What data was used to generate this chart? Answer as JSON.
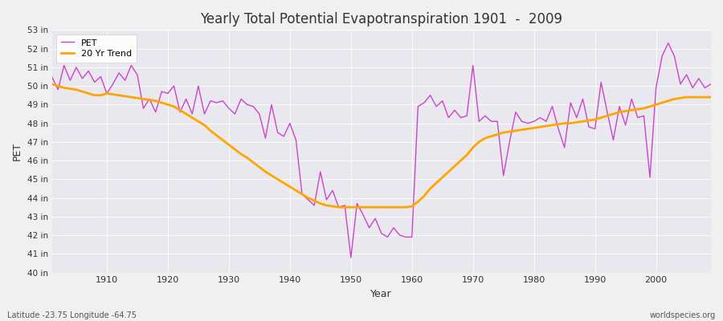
{
  "title": "Yearly Total Potential Evapotranspiration 1901  -  2009",
  "xlabel": "Year",
  "ylabel": "PET",
  "footer_left": "Latitude -23.75 Longitude -64.75",
  "footer_right": "worldspecies.org",
  "pet_color": "#cc44cc",
  "trend_color": "#ffa500",
  "bg_color": "#f0f0f0",
  "plot_bg_color": "#e8e8ee",
  "ylim_min": 40,
  "ylim_max": 53,
  "years": [
    1901,
    1902,
    1903,
    1904,
    1905,
    1906,
    1907,
    1908,
    1909,
    1910,
    1911,
    1912,
    1913,
    1914,
    1915,
    1916,
    1917,
    1918,
    1919,
    1920,
    1921,
    1922,
    1923,
    1924,
    1925,
    1926,
    1927,
    1928,
    1929,
    1930,
    1931,
    1932,
    1933,
    1934,
    1935,
    1936,
    1937,
    1938,
    1939,
    1940,
    1941,
    1942,
    1943,
    1944,
    1945,
    1946,
    1947,
    1948,
    1949,
    1950,
    1951,
    1952,
    1953,
    1954,
    1955,
    1956,
    1957,
    1958,
    1959,
    1960,
    1961,
    1962,
    1963,
    1964,
    1965,
    1966,
    1967,
    1968,
    1969,
    1970,
    1971,
    1972,
    1973,
    1974,
    1975,
    1976,
    1977,
    1978,
    1979,
    1980,
    1981,
    1982,
    1983,
    1984,
    1985,
    1986,
    1987,
    1988,
    1989,
    1990,
    1991,
    1992,
    1993,
    1994,
    1995,
    1996,
    1997,
    1998,
    1999,
    2000,
    2001,
    2002,
    2003,
    2004,
    2005,
    2006,
    2007,
    2008,
    2009
  ],
  "pet_values": [
    50.5,
    49.8,
    51.1,
    50.3,
    51.0,
    50.4,
    50.8,
    50.2,
    50.5,
    49.6,
    50.1,
    50.7,
    50.3,
    51.1,
    50.6,
    48.8,
    49.3,
    48.6,
    49.7,
    49.6,
    50.0,
    48.6,
    49.3,
    48.5,
    50.0,
    48.5,
    49.2,
    49.1,
    49.2,
    48.8,
    48.5,
    49.3,
    49.0,
    48.9,
    48.5,
    47.2,
    49.0,
    47.5,
    47.3,
    48.0,
    47.1,
    44.2,
    43.9,
    43.6,
    45.4,
    43.9,
    44.4,
    43.5,
    43.6,
    40.8,
    43.7,
    43.1,
    42.4,
    42.9,
    42.1,
    41.9,
    42.4,
    42.0,
    41.9,
    41.9,
    48.9,
    49.1,
    49.5,
    48.9,
    49.2,
    48.3,
    48.7,
    48.3,
    48.4,
    51.1,
    48.1,
    48.4,
    48.1,
    48.1,
    45.2,
    47.0,
    48.6,
    48.1,
    48.0,
    48.1,
    48.3,
    48.1,
    48.9,
    47.7,
    46.7,
    49.1,
    48.3,
    49.3,
    47.8,
    47.7,
    50.2,
    48.6,
    47.1,
    48.9,
    47.9,
    49.3,
    48.3,
    48.4,
    45.1,
    49.9,
    51.6,
    52.3,
    51.6,
    50.1,
    50.6,
    49.9,
    50.4,
    49.9,
    50.1
  ],
  "trend_years": [
    1901,
    1902,
    1903,
    1904,
    1905,
    1906,
    1907,
    1908,
    1909,
    1910,
    1911,
    1912,
    1913,
    1914,
    1915,
    1916,
    1917,
    1918,
    1919,
    1920,
    1921,
    1922,
    1923,
    1924,
    1925,
    1926,
    1927,
    1928,
    1929,
    1930,
    1931,
    1932,
    1933,
    1934,
    1935,
    1936,
    1937,
    1938,
    1939,
    1940,
    1941,
    1942,
    1943,
    1944,
    1945,
    1946,
    1947,
    1948,
    1949,
    1950,
    1951,
    1952,
    1953,
    1954,
    1955,
    1956,
    1957,
    1958,
    1959,
    1960,
    1961,
    1962,
    1963,
    1964,
    1965,
    1966,
    1967,
    1968,
    1969,
    1970,
    1971,
    1972,
    1973,
    1974,
    1975,
    1976,
    1977,
    1978,
    1979,
    1980,
    1981,
    1982,
    1983,
    1984,
    1985,
    1986,
    1987,
    1988,
    1989,
    1990,
    1991,
    1992,
    1993,
    1994,
    1995,
    1996,
    1997,
    1998,
    1999,
    2000,
    2001,
    2002,
    2003,
    2004,
    2005,
    2006,
    2007,
    2008,
    2009
  ],
  "trend_values": [
    50.1,
    50.0,
    49.9,
    49.85,
    49.8,
    49.7,
    49.6,
    49.5,
    49.5,
    49.6,
    49.55,
    49.5,
    49.45,
    49.4,
    49.35,
    49.3,
    49.25,
    49.2,
    49.1,
    49.0,
    48.9,
    48.7,
    48.5,
    48.3,
    48.1,
    47.9,
    47.6,
    47.35,
    47.1,
    46.85,
    46.6,
    46.35,
    46.15,
    45.9,
    45.65,
    45.4,
    45.2,
    45.0,
    44.8,
    44.6,
    44.4,
    44.2,
    44.0,
    43.85,
    43.7,
    43.6,
    43.55,
    43.5,
    43.5,
    43.5,
    43.5,
    43.5,
    43.5,
    43.5,
    43.5,
    43.5,
    43.5,
    43.5,
    43.5,
    43.55,
    43.8,
    44.1,
    44.5,
    44.8,
    45.1,
    45.4,
    45.7,
    46.0,
    46.3,
    46.7,
    47.0,
    47.2,
    47.3,
    47.4,
    47.5,
    47.55,
    47.6,
    47.65,
    47.7,
    47.75,
    47.8,
    47.85,
    47.9,
    47.95,
    48.0,
    48.0,
    48.05,
    48.1,
    48.15,
    48.2,
    48.3,
    48.4,
    48.5,
    48.6,
    48.65,
    48.7,
    48.75,
    48.8,
    48.9,
    49.0,
    49.1,
    49.2,
    49.3,
    49.35,
    49.4,
    49.4,
    49.4,
    49.4,
    49.4
  ]
}
